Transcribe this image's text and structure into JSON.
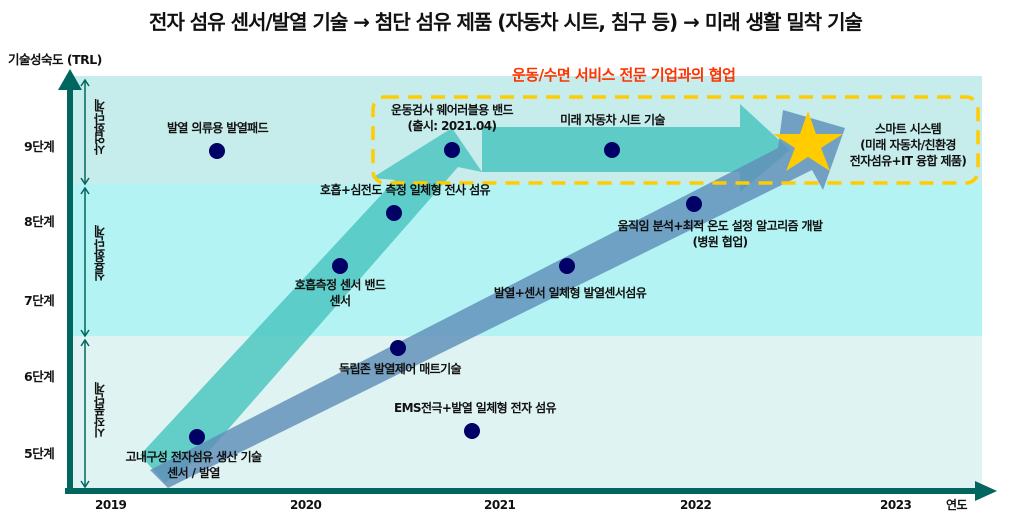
{
  "title": "전자 섬유 센서/발열 기술 → 첨단 섬유 제품 (자동차 시트, 침구 등) → 미래 생활 밀착 기술",
  "y_axis": {
    "title": "기술성숙도 (TRL)",
    "ticks": [
      "9단계",
      "8단계",
      "7단계",
      "6단계",
      "5단계"
    ]
  },
  "x_axis": {
    "title": "연도",
    "ticks": [
      "2019",
      "2020",
      "2021",
      "2022",
      "2023"
    ]
  },
  "stages": [
    {
      "label": "사업화단계",
      "color": "#c6ecec"
    },
    {
      "label": "실용화단계",
      "color": "#b3f3f3"
    },
    {
      "label": "시작품단계",
      "color": "#dff4f2"
    }
  ],
  "collaboration_label": "운동/수면 서비스 전문 기업과의 협업",
  "colors": {
    "axis": "#00665f",
    "teal_arrow": "#4ec5c1",
    "blue_arrow": "#5f8fb8",
    "dot": "#000066",
    "star": "#ffcc00",
    "dash_box": "#ffcc00",
    "collab_text": "#ff3300"
  },
  "milestones": [
    {
      "text": "발열 의류용 발열패드",
      "year": 2019.55,
      "trl": 9
    },
    {
      "text": "운동검사 웨어러블용 밴드\n(출시: 2021.04)",
      "year": 2020.75,
      "trl": 9
    },
    {
      "text": "미래 자동차 시트 기술",
      "year": 2021.55,
      "trl": 9
    },
    {
      "text": "호흡+심전도 측정 일체형 전사 섬유",
      "year": 2020.45,
      "trl": 8.2
    },
    {
      "text": "호흡측정 센서 밴드\n센서",
      "year": 2020.18,
      "trl": 7.5
    },
    {
      "text": "움직임 분석+최적 온도 설정 알고리즘 개발\n(병원 협업)",
      "year": 2022.0,
      "trl": 8.3
    },
    {
      "text": "발열+센서 일체형 발열센서섬유",
      "year": 2021.35,
      "trl": 7.5
    },
    {
      "text": "독립존 발열제어 매트기술",
      "year": 2020.48,
      "trl": 6.3
    },
    {
      "text": "EMS전극+발열 일체형 전자 섬유",
      "year": 2020.85,
      "trl": 5.3
    },
    {
      "text": "고내구성 전자섬유 생산 기술\n센서 / 발열",
      "year": 2019.45,
      "trl": 5.2
    }
  ],
  "goal": {
    "text": "스마트 시스템\n(미래 자동차/친환경\n전자섬유+IT 융합 제품)",
    "icon": "star-icon"
  }
}
